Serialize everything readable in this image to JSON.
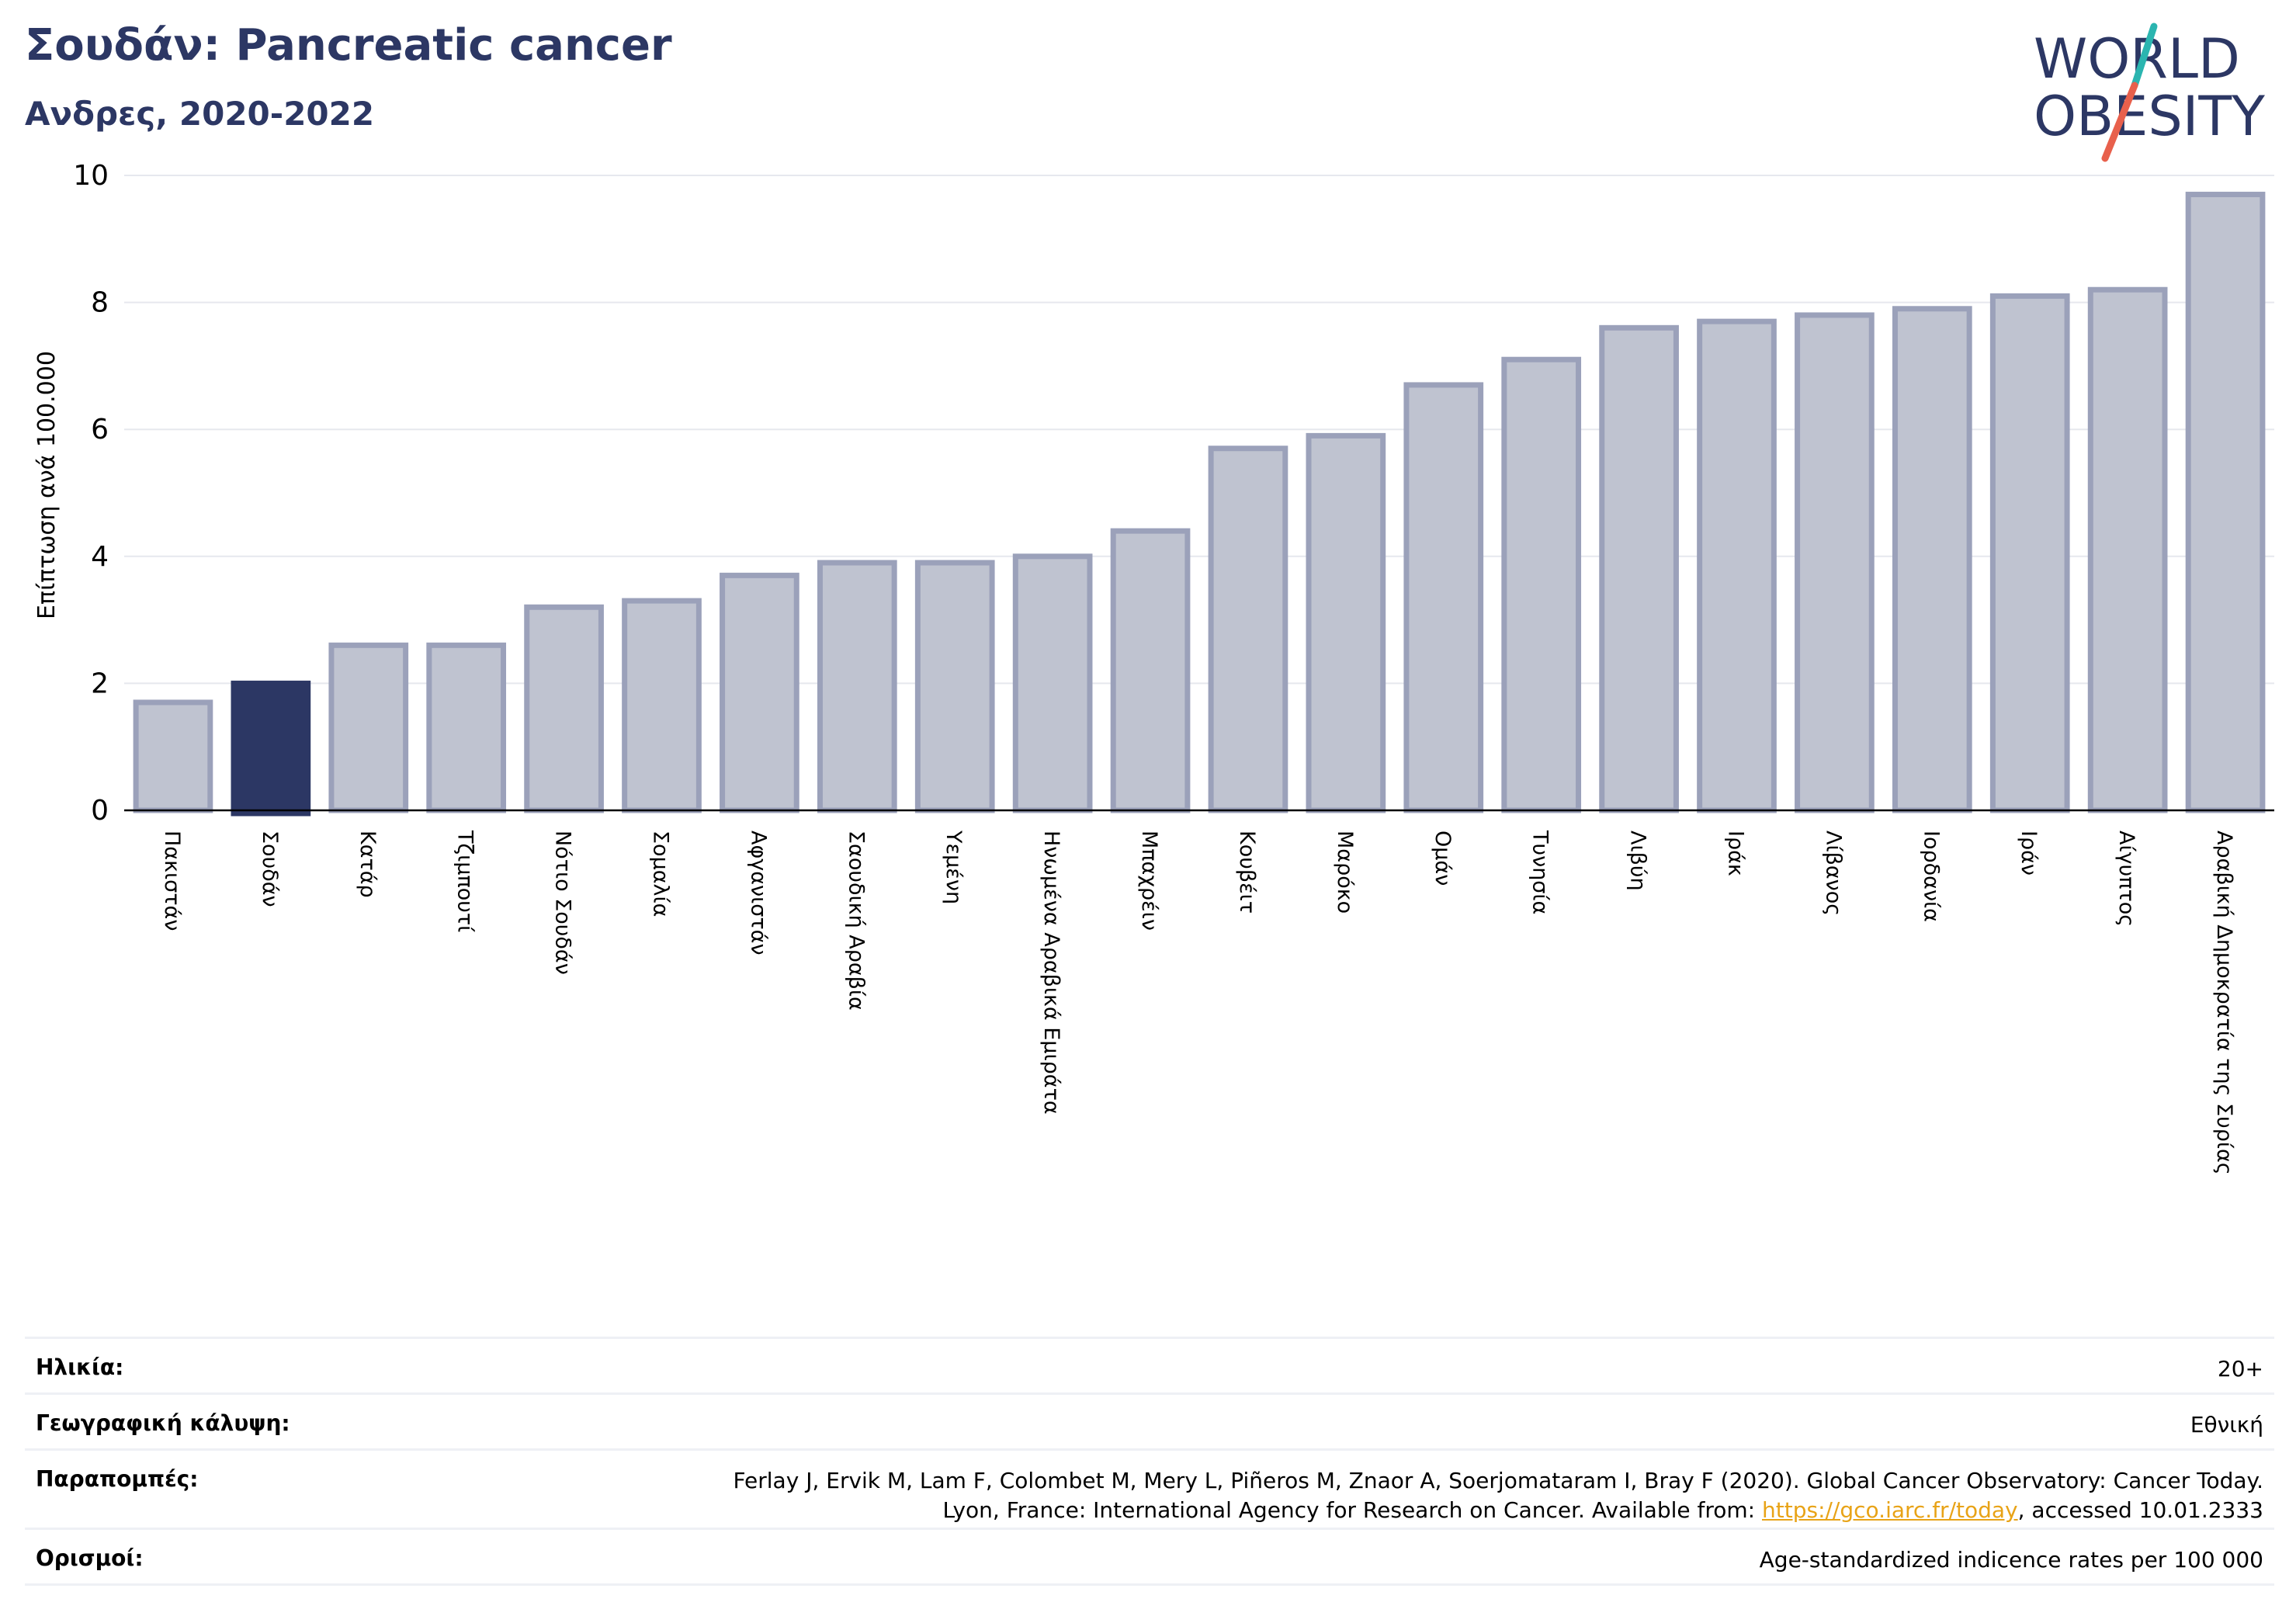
{
  "header": {
    "title": "Σουδάν: Pancreatic cancer",
    "subtitle": "Ανδρες, 2020-2022"
  },
  "logo": {
    "line1": "WORLD",
    "line2": "OBESITY"
  },
  "colors": {
    "highlight": "#2c3764",
    "bar": "#bfc3d0",
    "bar_edge": "#9ba1ba",
    "title": "#2c3764",
    "link": "#e8a317",
    "logo_teal": "#2bb5b0",
    "logo_red": "#e8604c"
  },
  "chart_data": {
    "type": "bar",
    "ylabel": "Επίπτωση ανά 100.000",
    "ylim": [
      0,
      10
    ],
    "yticks": [
      0,
      2,
      4,
      6,
      8,
      10
    ],
    "grid": true,
    "highlight_category": "Σουδάν",
    "categories": [
      "Πακιστάν",
      "Σουδάν",
      "Κατάρ",
      "Τζιμπουτί",
      "Νότιο Σουδάν",
      "Σομαλία",
      "Αφγανιστάν",
      "Σαουδική Αραβία",
      "Υεμένη",
      "Ηνωμένα Αραβικά Εμιράτα",
      "Μπαχρέιν",
      "Κουβέιτ",
      "Μαρόκο",
      "Ομάν",
      "Τυνησία",
      "Λιβύη",
      "Ιράκ",
      "Λίβανος",
      "Ιορδανία",
      "Ιράν",
      "Αίγυπτος",
      "Αραβική Δημοκρατία της Συρίας"
    ],
    "values": [
      1.7,
      2.0,
      2.6,
      2.6,
      3.2,
      3.3,
      3.7,
      3.9,
      3.9,
      4.0,
      4.4,
      5.7,
      5.9,
      6.7,
      7.1,
      7.6,
      7.7,
      7.8,
      7.9,
      8.1,
      8.2,
      9.7
    ]
  },
  "info": [
    {
      "label": "Ηλικία:",
      "value": "20+"
    },
    {
      "label": "Γεωγραφική κάλυψη:",
      "value": "Εθνική"
    },
    {
      "label": "Παραπομπές:",
      "value_line1": "Ferlay J, Ervik M, Lam F, Colombet M, Mery L, Piñeros M, Znaor A, Soerjomataram I, Bray F (2020). Global Cancer Observatory: Cancer Today.",
      "value_pre": "Lyon, France: International Agency for Research on Cancer. Available from: ",
      "link": "https://gco.iarc.fr/today",
      "value_post": ", accessed 10.01.2333"
    },
    {
      "label": "Ορισμοί:",
      "value": "Age-standardized indicence rates per 100 000"
    }
  ]
}
